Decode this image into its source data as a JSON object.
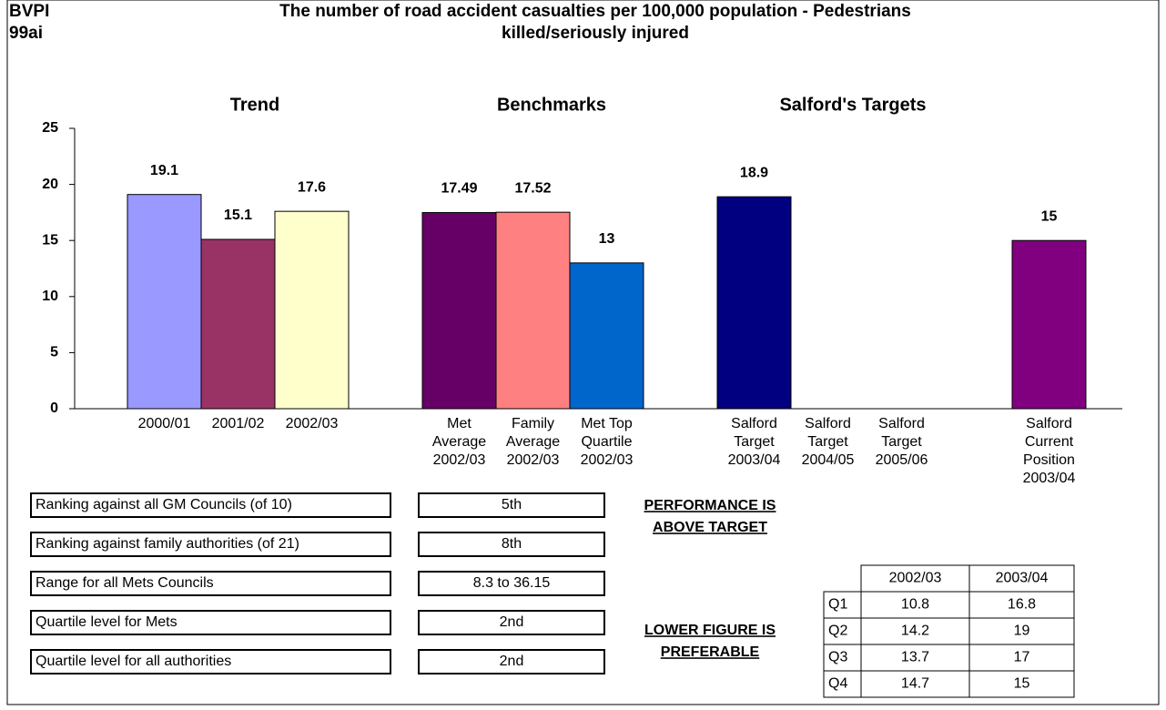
{
  "code": [
    "BVPI",
    "99ai"
  ],
  "chart_data": {
    "type": "bar",
    "title": [
      "The number of road accident casualties per 100,000 population - Pedestrians",
      "killed/seriously injured"
    ],
    "groups": [
      "Trend",
      "Benchmarks",
      "Salford's Targets"
    ],
    "categories": [
      [
        "2000/01"
      ],
      [
        "2001/02"
      ],
      [
        "2002/03"
      ],
      [
        "Met",
        "Average",
        "2002/03"
      ],
      [
        "Family",
        "Average",
        "2002/03"
      ],
      [
        "Met Top",
        "Quartile",
        "2002/03"
      ],
      [
        "Salford",
        "Target",
        "2003/04"
      ],
      [
        "Salford",
        "Target",
        "2004/05"
      ],
      [
        "Salford",
        "Target",
        "2005/06"
      ],
      [
        "Salford",
        "Current",
        "Position",
        "2003/04"
      ]
    ],
    "values": [
      19.1,
      15.1,
      17.6,
      17.49,
      17.52,
      13,
      18.9,
      null,
      null,
      15
    ],
    "colors": [
      "#9999ff",
      "#993366",
      "#ffffcc",
      "#660066",
      "#ff8080",
      "#0066cc",
      "#000080",
      null,
      null,
      "#800080"
    ],
    "ylim": [
      0,
      25
    ],
    "yticks": [
      0,
      5,
      10,
      15,
      20,
      25
    ]
  },
  "rankings": [
    [
      "Ranking against all GM Councils (of 10)",
      "5th"
    ],
    [
      "Ranking against family authorities (of 21)",
      "8th"
    ],
    [
      "Range for all Mets Councils",
      "8.3 to 36.15"
    ],
    [
      "Quartile level for Mets",
      "2nd"
    ],
    [
      "Quartile level for all authorities",
      "2nd"
    ]
  ],
  "notes": [
    [
      "PERFORMANCE IS",
      "ABOVE TARGET"
    ],
    [
      "LOWER FIGURE IS",
      "PREFERABLE"
    ]
  ],
  "quartile_table": {
    "header": [
      "2002/03",
      "2003/04"
    ],
    "rows": [
      [
        "Q1",
        "10.8",
        "16.8"
      ],
      [
        "Q2",
        "14.2",
        "19"
      ],
      [
        "Q3",
        "13.7",
        "17"
      ],
      [
        "Q4",
        "14.7",
        "15"
      ]
    ]
  }
}
